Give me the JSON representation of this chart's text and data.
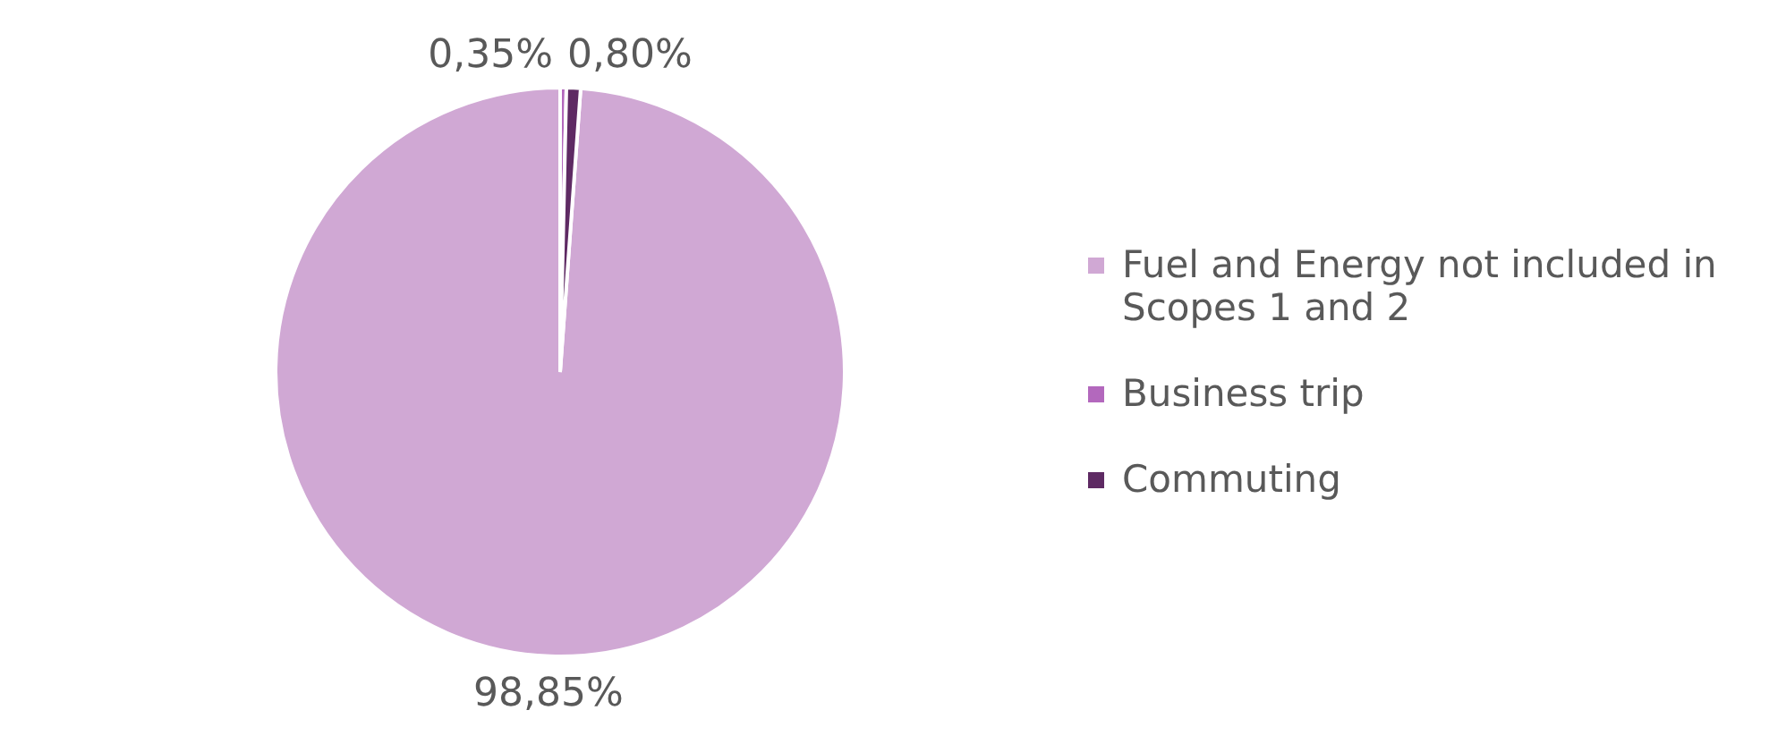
{
  "chart_data": {
    "type": "pie",
    "categories": [
      "Fuel and Energy not included in Scopes 1 and 2",
      "Business trip",
      "Commuting"
    ],
    "values": [
      98.85,
      0.35,
      0.8
    ],
    "colors": [
      "#d0a8d4",
      "#b368bd",
      "#5e2a63"
    ],
    "value_labels": [
      "98,85%",
      "0,35%",
      "0,80%"
    ],
    "legend": "right"
  }
}
